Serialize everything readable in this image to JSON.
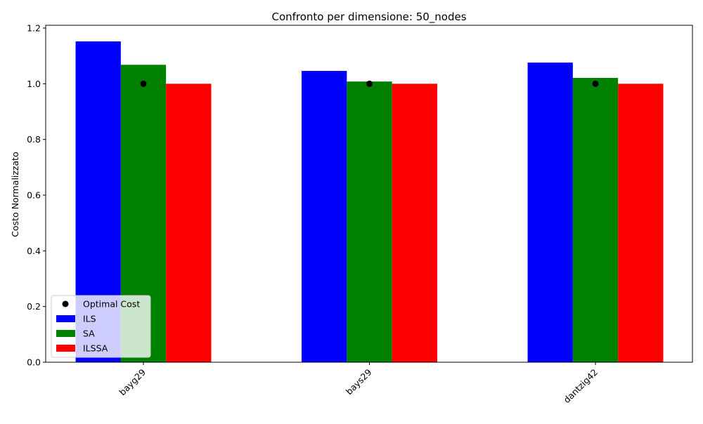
{
  "chart_data": {
    "type": "bar",
    "title": "Confronto per dimensione: 50_nodes",
    "xlabel": "",
    "ylabel": "Costo Normalizzato",
    "categories": [
      "bayg29",
      "bays29",
      "dantzig42"
    ],
    "series": [
      {
        "name": "ILS",
        "color": "#0000ff",
        "values": [
          1.152,
          1.046,
          1.076
        ]
      },
      {
        "name": "SA",
        "color": "#008000",
        "values": [
          1.068,
          1.008,
          1.021
        ]
      },
      {
        "name": "ILSSA",
        "color": "#ff0000",
        "values": [
          1.0,
          1.0,
          1.0
        ]
      }
    ],
    "markers": {
      "name": "Optimal Cost",
      "color": "#000000",
      "values": [
        1.0,
        1.0,
        1.0
      ]
    },
    "ylim": [
      0,
      1.21
    ],
    "yticks": [
      "0.0",
      "0.2",
      "0.4",
      "0.6",
      "0.8",
      "1.0",
      "1.2"
    ],
    "legend_position": "lower-left",
    "grid": false
  }
}
